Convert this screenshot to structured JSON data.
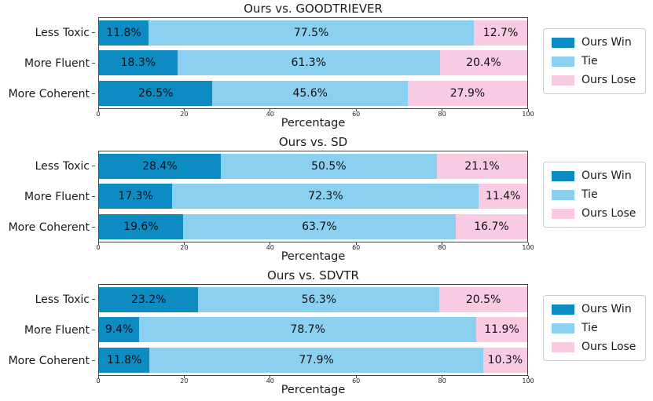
{
  "page": {
    "background": "#ffffff",
    "text_color": "#1a1a1a"
  },
  "colors": {
    "ours_win": "#0d8cc4",
    "tie": "#8bd0f0",
    "ours_lose": "#f8cbe3",
    "axis": "#454545",
    "legend_border": "#cccccc"
  },
  "legend": {
    "position": "right",
    "entries": [
      "Ours Win",
      "Tie",
      "Ours Lose"
    ]
  },
  "chart_data": [
    {
      "type": "bar",
      "stacked": true,
      "orientation": "horizontal",
      "title": "Ours vs. GOODTRIEVER",
      "xlabel": "Percentage",
      "xlim": [
        0,
        100
      ],
      "xticks": [
        0,
        20,
        40,
        60,
        80,
        100
      ],
      "grid": false,
      "legend_position": "right",
      "categories": [
        "Less Toxic",
        "More Fluent",
        "More Coherent"
      ],
      "series": [
        {
          "name": "Ours Win",
          "color": "#0d8cc4",
          "values": [
            11.8,
            18.3,
            26.5
          ]
        },
        {
          "name": "Tie",
          "color": "#8bd0f0",
          "values": [
            77.5,
            61.3,
            45.6
          ]
        },
        {
          "name": "Ours Lose",
          "color": "#f8cbe3",
          "values": [
            12.7,
            20.4,
            27.9
          ]
        }
      ]
    },
    {
      "type": "bar",
      "stacked": true,
      "orientation": "horizontal",
      "title": "Ours vs. SD",
      "xlabel": "Percentage",
      "xlim": [
        0,
        100
      ],
      "xticks": [
        0,
        20,
        40,
        60,
        80,
        100
      ],
      "grid": false,
      "legend_position": "right",
      "categories": [
        "Less Toxic",
        "More Fluent",
        "More Coherent"
      ],
      "series": [
        {
          "name": "Ours Win",
          "color": "#0d8cc4",
          "values": [
            28.4,
            17.3,
            19.6
          ]
        },
        {
          "name": "Tie",
          "color": "#8bd0f0",
          "values": [
            50.5,
            72.3,
            63.7
          ]
        },
        {
          "name": "Ours Lose",
          "color": "#f8cbe3",
          "values": [
            21.1,
            11.4,
            16.7
          ]
        }
      ]
    },
    {
      "type": "bar",
      "stacked": true,
      "orientation": "horizontal",
      "title": "Ours vs. SDVTR",
      "xlabel": "Percentage",
      "xlim": [
        0,
        100
      ],
      "xticks": [
        0,
        20,
        40,
        60,
        80,
        100
      ],
      "grid": false,
      "legend_position": "right",
      "categories": [
        "Less Toxic",
        "More Fluent",
        "More Coherent"
      ],
      "series": [
        {
          "name": "Ours Win",
          "color": "#0d8cc4",
          "values": [
            23.2,
            9.4,
            11.8
          ]
        },
        {
          "name": "Tie",
          "color": "#8bd0f0",
          "values": [
            56.3,
            78.7,
            77.9
          ]
        },
        {
          "name": "Ours Lose",
          "color": "#f8cbe3",
          "values": [
            20.5,
            11.9,
            10.3
          ]
        }
      ]
    }
  ]
}
